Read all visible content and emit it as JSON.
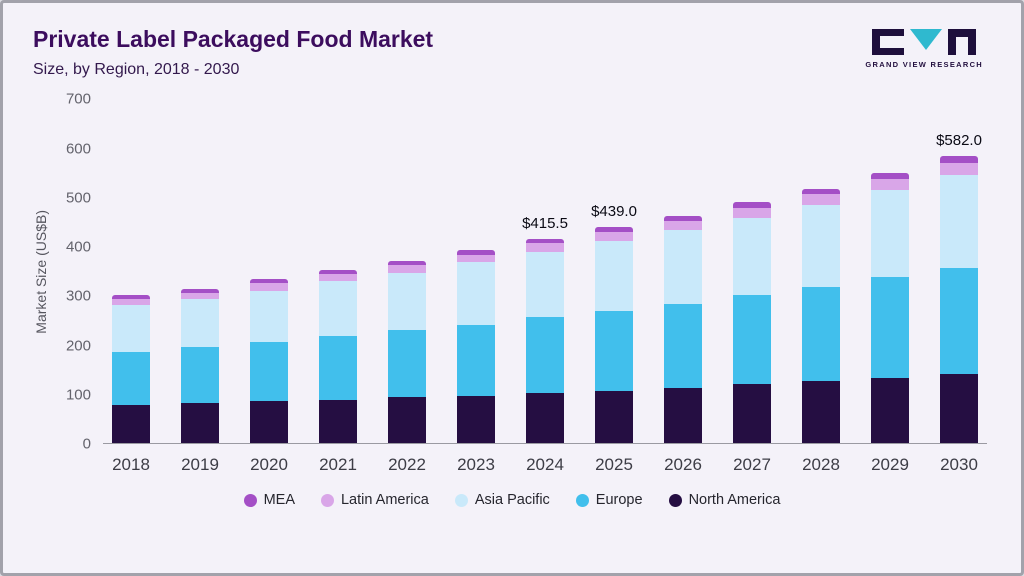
{
  "header": {
    "title": "Private Label Packaged Food Market",
    "subtitle": "Size, by Region, 2018 - 2030",
    "logo_text": "GRAND VIEW RESEARCH"
  },
  "colors": {
    "title": "#3c0d5e",
    "background": "#f4f2f9",
    "logo_teal": "#2fb9cf",
    "logo_dark": "#1e0f3c"
  },
  "chart_data": {
    "type": "bar",
    "stacked": true,
    "title": "Private Label Packaged Food Market Size, by Region, 2018 - 2030",
    "ylabel": "Market Size (US$B)",
    "xlabel": "",
    "ylim": [
      0,
      700
    ],
    "yticks": [
      0,
      100,
      200,
      300,
      400,
      500,
      600,
      700
    ],
    "grid": false,
    "legend_position": "bottom",
    "categories": [
      2018,
      2019,
      2020,
      2021,
      2022,
      2023,
      2024,
      2025,
      2026,
      2027,
      2028,
      2029,
      2030
    ],
    "series": [
      {
        "name": "North America",
        "color": "#250e42",
        "values": [
          78,
          81,
          85,
          88,
          93,
          97,
          103,
          107,
          113,
          120,
          126,
          133,
          141
        ]
      },
      {
        "name": "Europe",
        "color": "#41bfec",
        "values": [
          107,
          114,
          121,
          130,
          136,
          144,
          152.5,
          161,
          170,
          180,
          192,
          204,
          214
        ]
      },
      {
        "name": "Asia Pacific",
        "color": "#c9e9fa",
        "values": [
          95,
          97,
          104,
          111,
          117,
          126,
          133,
          142,
          149,
          157,
          166,
          176,
          190
        ]
      },
      {
        "name": "Latin America",
        "color": "#d9a6e8",
        "values": [
          13,
          14,
          15,
          15,
          16,
          16,
          17.5,
          19,
          20,
          21,
          22,
          23,
          24
        ]
      },
      {
        "name": "MEA",
        "color": "#a44fc6",
        "values": [
          7,
          8,
          8,
          8,
          8,
          9,
          9.5,
          10,
          10,
          11,
          11,
          13,
          13
        ]
      }
    ],
    "totals": [
      300,
      314,
      333,
      352,
      370,
      392,
      415.5,
      439,
      462,
      489,
      517,
      549,
      582
    ],
    "annotations": [
      {
        "category": 2024,
        "text": "$415.5"
      },
      {
        "category": 2025,
        "text": "$439.0"
      },
      {
        "category": 2030,
        "text": "$582.0"
      }
    ],
    "legend": [
      "MEA",
      "Latin America",
      "Asia Pacific",
      "Europe",
      "North America"
    ]
  }
}
